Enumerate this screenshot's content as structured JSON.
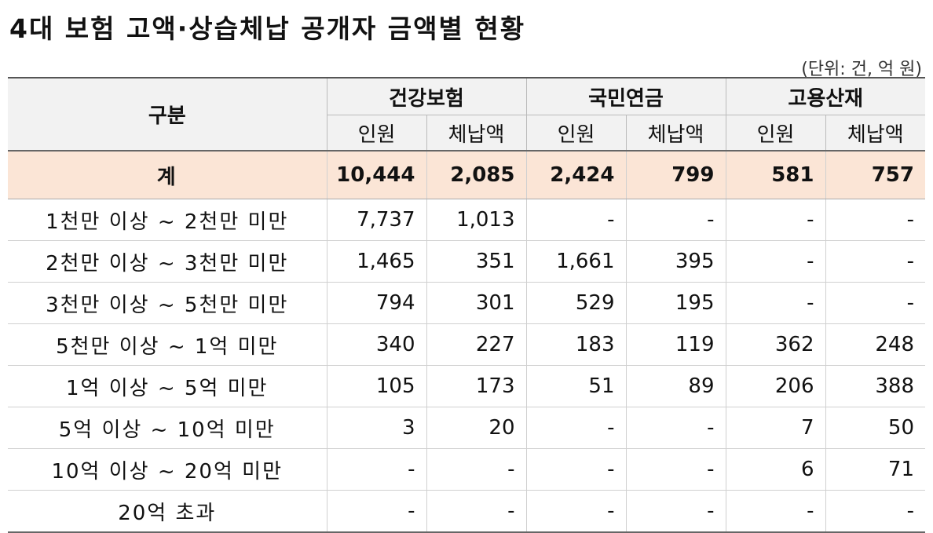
{
  "title": "4대 보험 고액·상습체납 공개자 금액별 현황",
  "unit_note": "(단위: 건, 억 원)",
  "header": {
    "category": "구분",
    "groups": [
      "건강보험",
      "국민연금",
      "고용산재"
    ],
    "subcols": [
      "인원",
      "체납액",
      "인원",
      "체납액",
      "인원",
      "체납액"
    ]
  },
  "total": {
    "label": "계",
    "values": [
      "10,444",
      "2,085",
      "2,424",
      "799",
      "581",
      "757"
    ]
  },
  "rows": [
    {
      "label": "1천만 이상 ~ 2천만 미만",
      "values": [
        "7,737",
        "1,013",
        "-",
        "-",
        "-",
        "-"
      ]
    },
    {
      "label": "2천만 이상 ~ 3천만 미만",
      "values": [
        "1,465",
        "351",
        "1,661",
        "395",
        "-",
        "-"
      ]
    },
    {
      "label": "3천만 이상 ~ 5천만 미만",
      "values": [
        "794",
        "301",
        "529",
        "195",
        "-",
        "-"
      ]
    },
    {
      "label": "5천만 이상 ~ 1억 미만",
      "values": [
        "340",
        "227",
        "183",
        "119",
        "362",
        "248"
      ]
    },
    {
      "label": "1억 이상 ~ 5억 미만",
      "values": [
        "105",
        "173",
        "51",
        "89",
        "206",
        "388"
      ]
    },
    {
      "label": "5억 이상 ~ 10억 미만",
      "values": [
        "3",
        "20",
        "-",
        "-",
        "7",
        "50"
      ]
    },
    {
      "label": "10억 이상 ~ 20억 미만",
      "values": [
        "-",
        "-",
        "-",
        "-",
        "6",
        "71"
      ]
    },
    {
      "label": "20억 초과",
      "values": [
        "-",
        "-",
        "-",
        "-",
        "-",
        "-"
      ]
    }
  ]
}
